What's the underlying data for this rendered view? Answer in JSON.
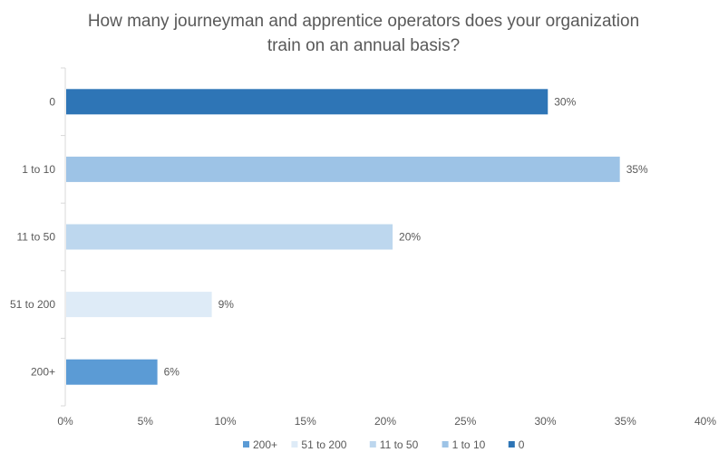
{
  "chart_data": {
    "type": "bar",
    "orientation": "horizontal",
    "title_lines": [
      "How many journeyman and apprentice operators does your organization",
      "train on an annual basis?"
    ],
    "categories": [
      "0",
      "1 to 10",
      "11 to 50",
      "51 to 200",
      "200+"
    ],
    "values": [
      30.1,
      34.6,
      20.4,
      9.1,
      5.7
    ],
    "data_labels": [
      "30%",
      "35%",
      "20%",
      "9%",
      "6%"
    ],
    "colors": [
      "#2e75b6",
      "#9dc3e6",
      "#bdd7ee",
      "#deebf7",
      "#5b9bd5"
    ],
    "xlim": [
      0,
      40
    ],
    "x_ticks": [
      0,
      5,
      10,
      15,
      20,
      25,
      30,
      35,
      40
    ],
    "x_tick_labels": [
      "0%",
      "5%",
      "10%",
      "15%",
      "20%",
      "25%",
      "30%",
      "35%",
      "40%"
    ],
    "grid": false,
    "legend_position": "bottom",
    "legend": [
      {
        "label": "200+",
        "color": "#5b9bd5"
      },
      {
        "label": "51 to 200",
        "color": "#deebf7"
      },
      {
        "label": "11 to 50",
        "color": "#bdd7ee"
      },
      {
        "label": "1 to 10",
        "color": "#9dc3e6"
      },
      {
        "label": "0",
        "color": "#2e75b6"
      }
    ]
  }
}
